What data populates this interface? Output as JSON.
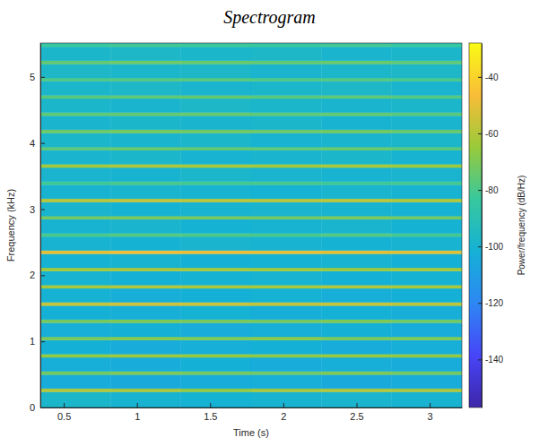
{
  "chart_data": {
    "type": "heatmap",
    "title": "Spectrogram",
    "x_label": "Time (s)",
    "y_label": "Frequency (kHz)",
    "xlim": [
      0.34,
      3.22
    ],
    "xticks": [
      0.5,
      1,
      1.5,
      2,
      2.5,
      3
    ],
    "ylim": [
      0,
      5.5125
    ],
    "yticks": [
      0,
      1,
      2,
      3,
      4,
      5
    ],
    "x_bins": [
      0.34,
      0.82,
      1.3,
      1.78,
      2.26,
      2.74,
      3.22
    ],
    "y_bins": [
      0,
      0.236,
      0.286,
      0.497,
      0.547,
      0.758,
      0.808,
      1.019,
      1.069,
      1.28,
      1.33,
      1.541,
      1.591,
      1.802,
      1.852,
      2.063,
      2.113,
      2.324,
      2.374,
      2.585,
      2.635,
      2.846,
      2.896,
      3.107,
      3.157,
      3.368,
      3.418,
      3.629,
      3.679,
      3.89,
      3.94,
      4.151,
      4.201,
      4.412,
      4.462,
      4.673,
      4.723,
      4.934,
      4.984,
      5.195,
      5.245,
      5.456,
      5.506,
      5.5125
    ],
    "cells": [
      [
        -98,
        -100,
        -101,
        -100,
        -99,
        -100
      ],
      [
        -60,
        -61,
        -66,
        -62,
        -60,
        -61
      ],
      [
        -104,
        -105,
        -104,
        -103,
        -105,
        -104
      ],
      [
        -72,
        -70,
        -71,
        -73,
        -70,
        -72
      ],
      [
        -103,
        -104,
        -102,
        -104,
        -103,
        -104
      ],
      [
        -66,
        -64,
        -65,
        -67,
        -65,
        -66
      ],
      [
        -102,
        -104,
        -103,
        -102,
        -104,
        -103
      ],
      [
        -70,
        -68,
        -69,
        -67,
        -70,
        -69
      ],
      [
        -103,
        -102,
        -104,
        -103,
        -102,
        -104
      ],
      [
        -72,
        -70,
        -71,
        -72,
        -70,
        -73
      ],
      [
        -102,
        -103,
        -101,
        -103,
        -102,
        -103
      ],
      [
        -56,
        -54,
        -55,
        -57,
        -56,
        -58
      ],
      [
        -101,
        -103,
        -102,
        -101,
        -103,
        -102
      ],
      [
        -62,
        -60,
        -61,
        -62,
        -60,
        -62
      ],
      [
        -100,
        -102,
        -101,
        -100,
        -102,
        -101
      ],
      [
        -63,
        -61,
        -62,
        -63,
        -64,
        -62
      ],
      [
        -101,
        -100,
        -102,
        -101,
        -100,
        -102
      ],
      [
        -51,
        -48,
        -49,
        -50,
        -51,
        -52
      ],
      [
        -100,
        -101,
        -99,
        -100,
        -101,
        -100
      ],
      [
        -80,
        -78,
        -79,
        -80,
        -78,
        -81
      ],
      [
        -100,
        -99,
        -101,
        -100,
        -99,
        -101
      ],
      [
        -72,
        -70,
        -71,
        -72,
        -70,
        -72
      ],
      [
        -99,
        -101,
        -100,
        -99,
        -100,
        -101
      ],
      [
        -59,
        -57,
        -58,
        -59,
        -58,
        -60
      ],
      [
        -100,
        -99,
        -100,
        -101,
        -99,
        -100
      ],
      [
        -82,
        -80,
        -81,
        -80,
        -82,
        -81
      ],
      [
        -99,
        -100,
        -98,
        -99,
        -100,
        -99
      ],
      [
        -63,
        -61,
        -62,
        -63,
        -62,
        -64
      ],
      [
        -99,
        -98,
        -100,
        -99,
        -98,
        -100
      ],
      [
        -76,
        -74,
        -75,
        -76,
        -74,
        -77
      ],
      [
        -98,
        -99,
        -98,
        -100,
        -99,
        -98
      ],
      [
        -73,
        -71,
        -72,
        -73,
        -72,
        -74
      ],
      [
        -99,
        -98,
        -99,
        -98,
        -100,
        -99
      ],
      [
        -76,
        -75,
        -74,
        -76,
        -75,
        -77
      ],
      [
        -98,
        -99,
        -97,
        -98,
        -99,
        -98
      ],
      [
        -77,
        -76,
        -75,
        -77,
        -76,
        -78
      ],
      [
        -98,
        -97,
        -99,
        -98,
        -97,
        -99
      ],
      [
        -79,
        -78,
        -77,
        -79,
        -78,
        -80
      ],
      [
        -97,
        -98,
        -97,
        -99,
        -98,
        -97
      ],
      [
        -75,
        -73,
        -74,
        -75,
        -74,
        -76
      ],
      [
        -98,
        -97,
        -98,
        -97,
        -99,
        -98
      ],
      [
        -83,
        -81,
        -82,
        -83,
        -81,
        -84
      ],
      [
        -97,
        -98,
        -97,
        -98,
        -97,
        -98
      ]
    ],
    "colorbar": {
      "label": "Power/frequency (dB/Hz)",
      "range": [
        -157,
        -28
      ],
      "ticks": [
        -40,
        -60,
        -80,
        -100,
        -120,
        -140
      ]
    }
  }
}
